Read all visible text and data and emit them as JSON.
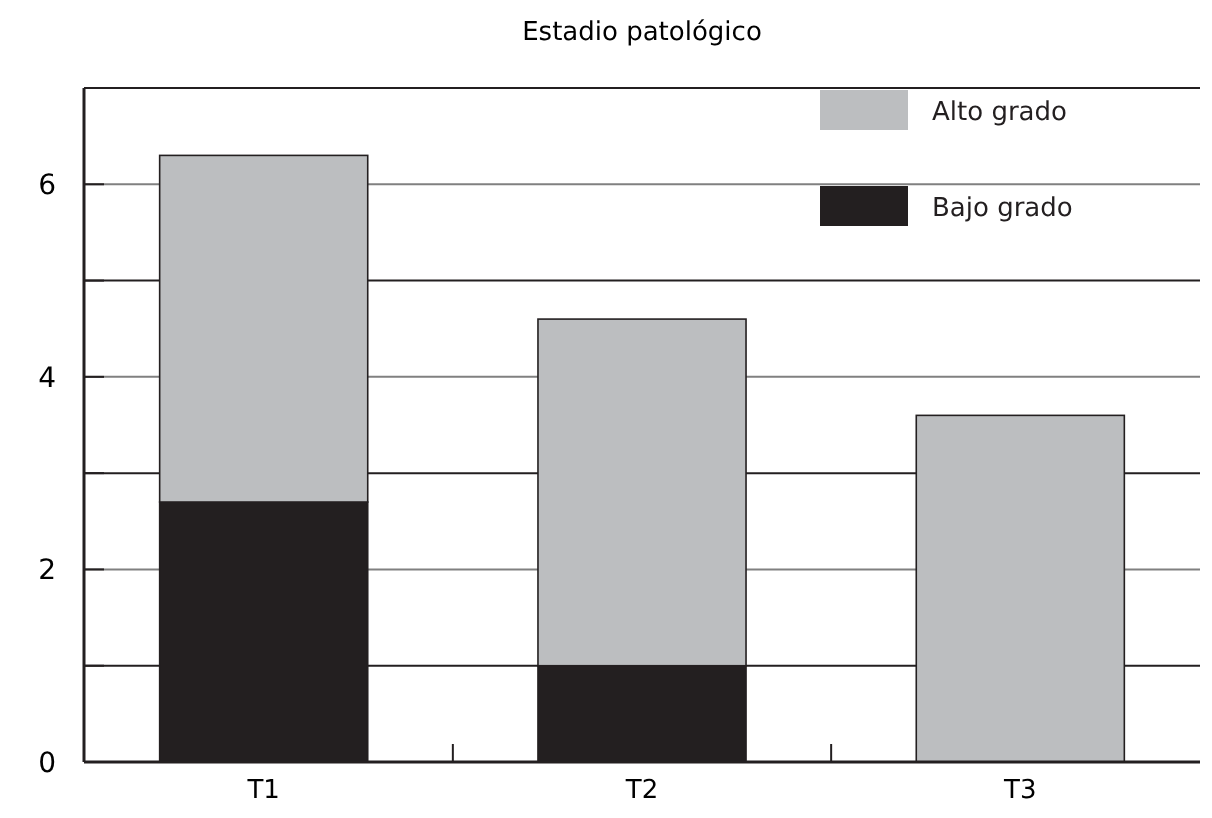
{
  "chart_data": {
    "type": "bar",
    "title": "Estadio patológico",
    "categories": [
      "T1",
      "T2",
      "T3"
    ],
    "stacked": true,
    "series": [
      {
        "name": "Bajo grado",
        "color": "#231f20",
        "values": [
          2.7,
          1.0,
          0
        ]
      },
      {
        "name": "Alto grado",
        "color": "#bcbec0",
        "values": [
          3.6,
          3.6,
          3.6
        ]
      }
    ],
    "ylim": [
      0,
      7
    ],
    "yticks": [
      0,
      {
        "value": 1,
        "label": null
      },
      2,
      {
        "value": 3,
        "label": null
      },
      4,
      {
        "value": 5,
        "label": null
      },
      6,
      {
        "value": 7,
        "label": null
      }
    ],
    "grid": "y",
    "legend": "top right"
  }
}
